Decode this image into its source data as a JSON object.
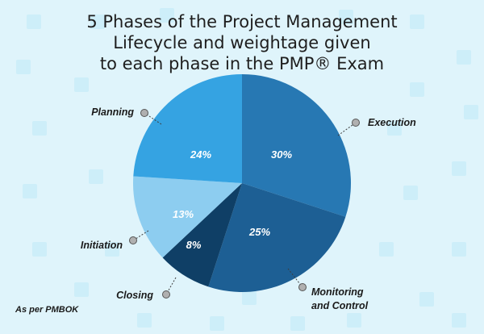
{
  "header": {
    "title_lines": [
      "5 Phases of the Project Management",
      "Lifecycle and weightage given",
      "to each phase in the PMP® Exam"
    ]
  },
  "footnote": "As per PMBOK",
  "colors": {
    "background": "#dff4fb",
    "background_squares": "#cdeef9",
    "text": "#1a1a1a",
    "leader": "#3c3c3c"
  },
  "chart_data": {
    "type": "pie",
    "title": "5 Phases of the Project Management Lifecycle and weightage given to each phase in the PMP® Exam",
    "start_angle_deg": 0,
    "direction": "clockwise",
    "slices": [
      {
        "name": "Execution",
        "value": 30,
        "label": "30%",
        "color": "#2778b3"
      },
      {
        "name": "Monitoring and Control",
        "value": 25,
        "label": "25%",
        "color": "#1d5f94"
      },
      {
        "name": "Closing",
        "value": 8,
        "label": "8%",
        "color": "#0f3f66"
      },
      {
        "name": "Initiation",
        "value": 13,
        "label": "13%",
        "color": "#8dcdf0"
      },
      {
        "name": "Planning",
        "value": 24,
        "label": "24%",
        "color": "#35a3e2"
      }
    ],
    "legend": "callouts"
  }
}
